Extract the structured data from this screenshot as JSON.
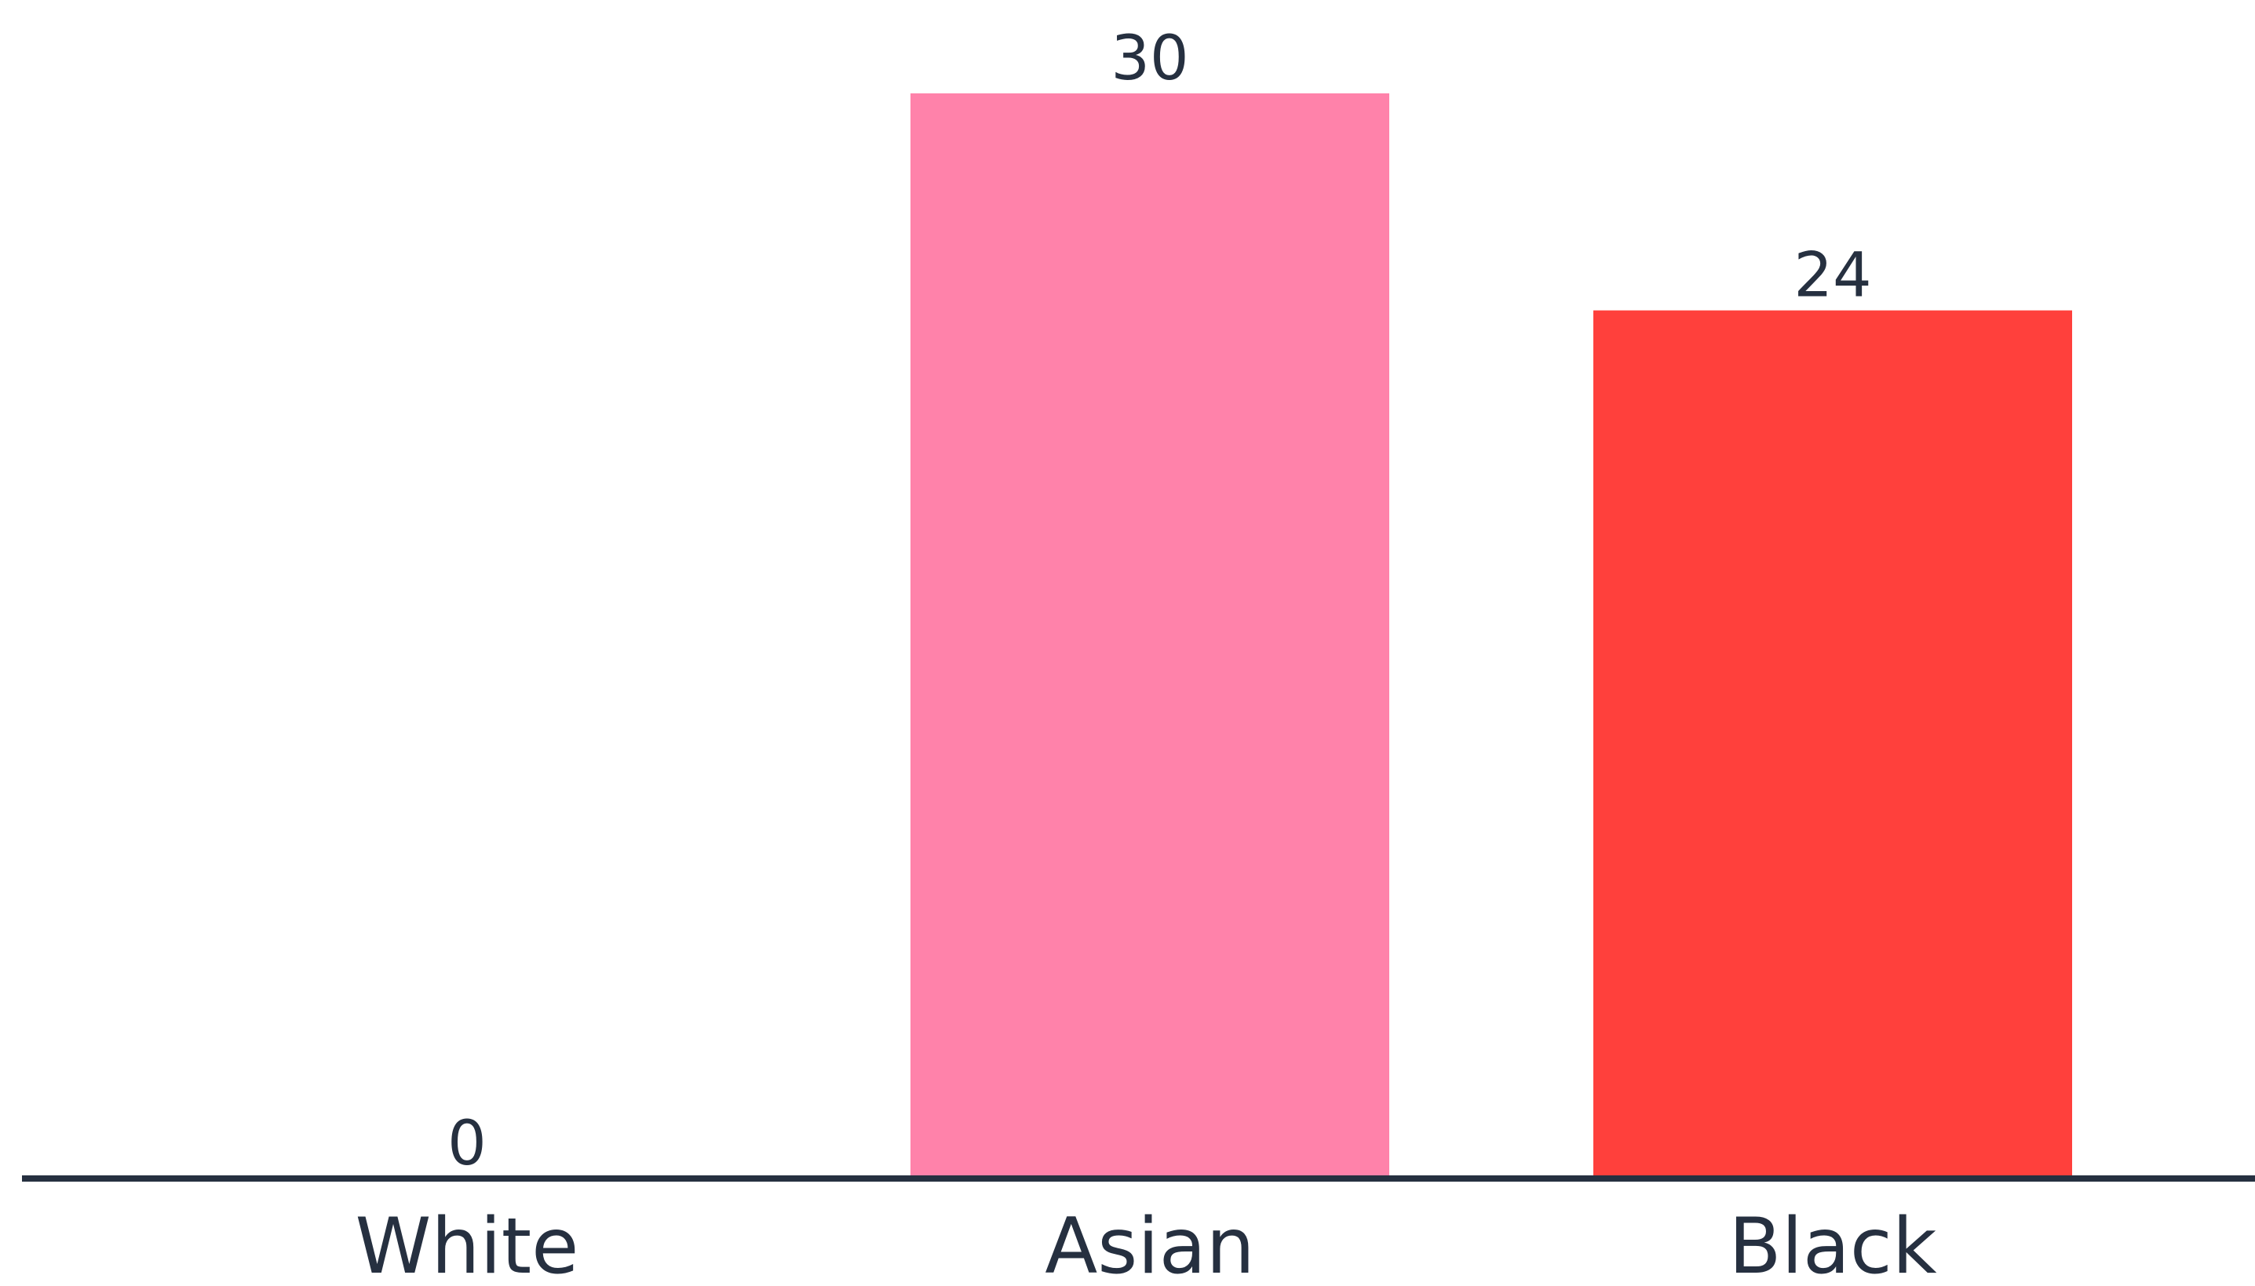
{
  "chart_data": {
    "type": "bar",
    "categories": [
      "White",
      "Asian",
      "Black"
    ],
    "values": [
      0,
      30,
      24
    ],
    "data_labels": [
      "0",
      "30",
      "24"
    ],
    "colors": [
      "#ff82aa",
      "#ff82aa",
      "#ff403c"
    ],
    "ylim": [
      0,
      30
    ],
    "grid": false,
    "legend": "none",
    "title": "",
    "xlabel": "",
    "ylabel": ""
  },
  "style": {
    "axis_color": "#263040",
    "text_color": "#263040",
    "background": "#ffffff"
  }
}
